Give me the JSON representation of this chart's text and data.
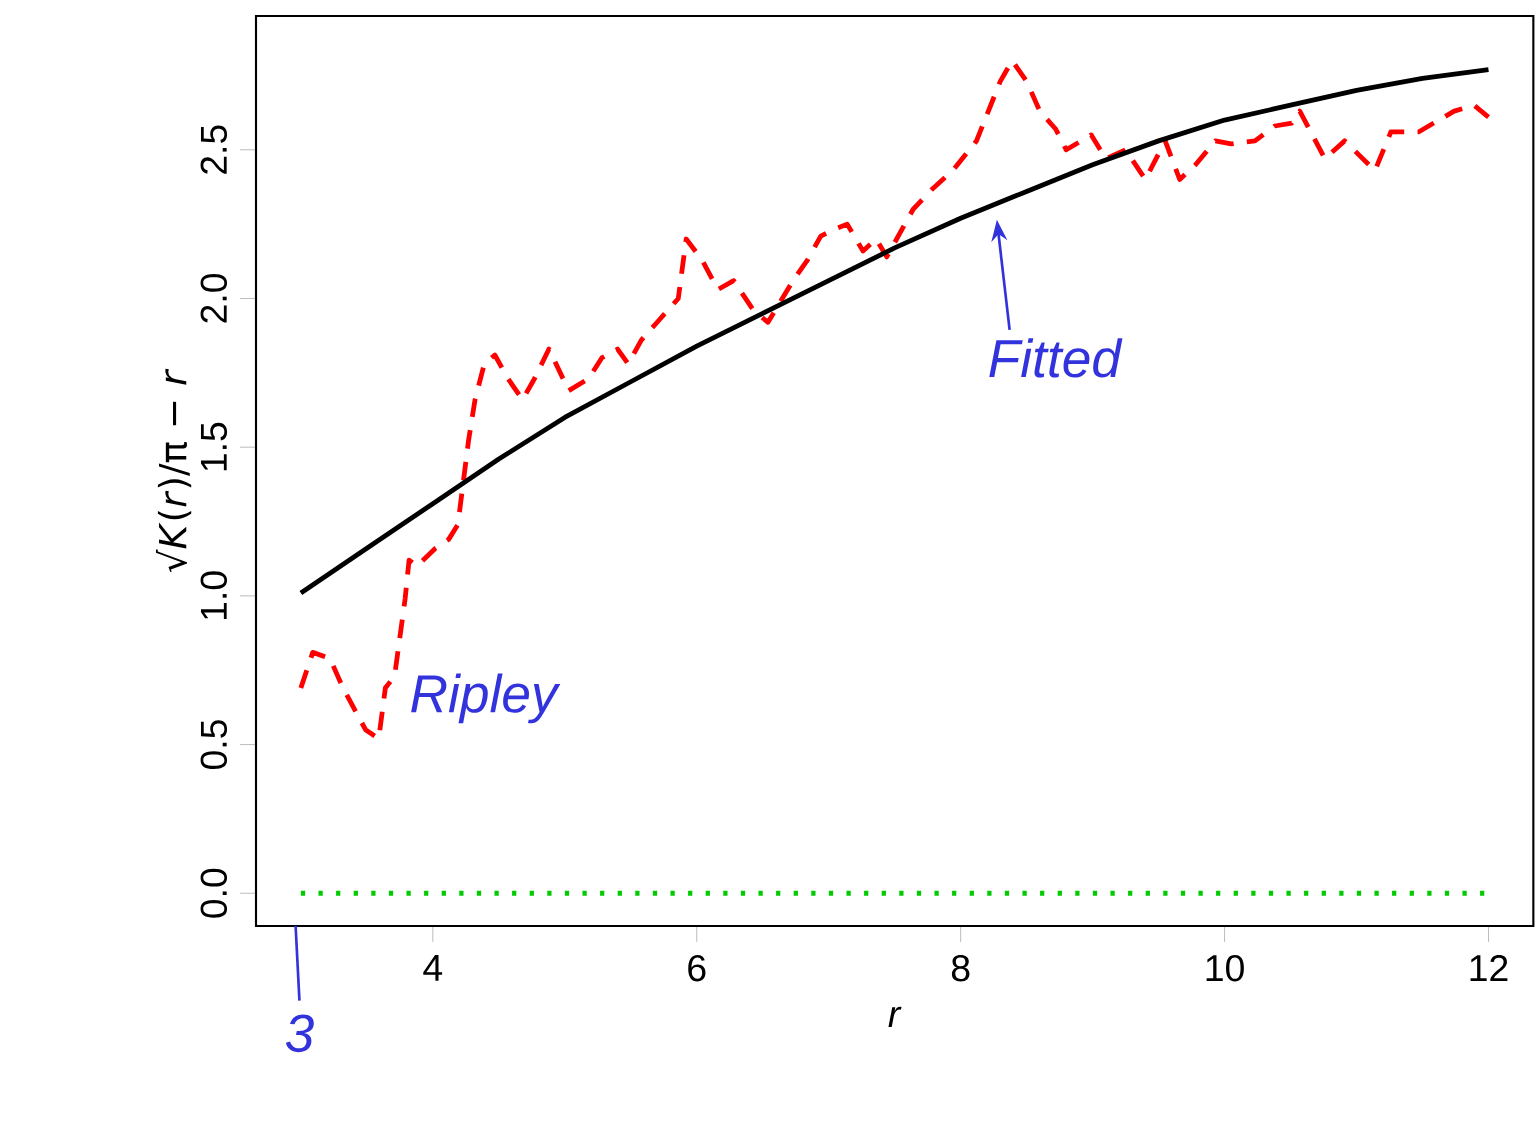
{
  "chart_data": {
    "type": "line",
    "xlabel": "*r*",
    "ylabel": "√*K*(*r*)/π − *r*",
    "xlim": [
      2.66,
      12.34
    ],
    "ylim": [
      -0.11,
      2.95
    ],
    "xticks": [
      4,
      6,
      8,
      10,
      12
    ],
    "yticks": [
      {
        "value": 0,
        "label": "0.0"
      },
      {
        "value": 0.5,
        "label": "0.5"
      },
      {
        "value": 1,
        "label": "1.0"
      },
      {
        "value": 1.5,
        "label": "1.5"
      },
      {
        "value": 2,
        "label": "2.0"
      },
      {
        "value": 2.5,
        "label": "2.5"
      }
    ],
    "grid": false,
    "marker": "none",
    "series": [
      {
        "color": "#ff0000",
        "line_style": "dashed",
        "x": [
          3.0,
          3.09,
          3.22,
          3.32,
          3.49,
          3.59,
          3.64,
          3.71,
          3.79,
          3.82,
          3.88,
          4.02,
          4.12,
          4.19,
          4.27,
          4.32,
          4.39,
          4.47,
          4.57,
          4.68,
          4.77,
          4.88,
          5.03,
          5.18,
          5.28,
          5.4,
          5.48,
          5.58,
          5.7,
          5.86,
          5.92,
          6.04,
          6.16,
          6.28,
          6.43,
          6.54,
          6.73,
          6.84,
          6.94,
          7.03,
          7.14,
          7.26,
          7.36,
          7.44,
          7.64,
          7.79,
          7.94,
          8.12,
          8.3,
          8.39,
          8.5,
          8.6,
          8.72,
          8.8,
          8.99,
          9.1,
          9.25,
          9.4,
          9.55,
          9.66,
          9.78,
          9.93,
          10.05,
          10.23,
          10.38,
          10.51,
          10.57,
          10.76,
          10.91,
          11.14,
          11.26,
          11.47,
          11.74,
          11.89,
          12.0
        ],
        "values": [
          0.69,
          0.81,
          0.79,
          0.69,
          0.55,
          0.52,
          0.69,
          0.73,
          0.99,
          1.12,
          1.1,
          1.16,
          1.19,
          1.24,
          1.52,
          1.66,
          1.78,
          1.81,
          1.73,
          1.66,
          1.73,
          1.83,
          1.69,
          1.73,
          1.8,
          1.83,
          1.78,
          1.86,
          1.92,
          2.0,
          2.2,
          2.13,
          2.03,
          2.06,
          1.96,
          1.92,
          2.06,
          2.13,
          2.21,
          2.23,
          2.25,
          2.16,
          2.2,
          2.14,
          2.3,
          2.37,
          2.43,
          2.53,
          2.73,
          2.8,
          2.73,
          2.63,
          2.57,
          2.5,
          2.55,
          2.47,
          2.5,
          2.4,
          2.53,
          2.4,
          2.45,
          2.53,
          2.52,
          2.53,
          2.58,
          2.59,
          2.63,
          2.47,
          2.53,
          2.43,
          2.56,
          2.56,
          2.63,
          2.65,
          2.61
        ]
      },
      {
        "color": "#000000",
        "line_style": "solid",
        "x": [
          3,
          3.5,
          4,
          4.5,
          5,
          5.5,
          6,
          6.5,
          7,
          7.5,
          8,
          8.5,
          9,
          9.5,
          10,
          10.5,
          11,
          11.5,
          12
        ],
        "values": [
          1.01,
          1.16,
          1.31,
          1.46,
          1.6,
          1.72,
          1.84,
          1.95,
          2.06,
          2.17,
          2.27,
          2.36,
          2.45,
          2.53,
          2.6,
          2.65,
          2.7,
          2.74,
          2.77
        ]
      },
      {
        "color": "#00cc00",
        "line_style": "dotted",
        "x": [
          3,
          12
        ],
        "values": [
          0,
          0
        ]
      }
    ],
    "annotations": [
      "Ripley",
      "Fitted",
      "3"
    ]
  }
}
